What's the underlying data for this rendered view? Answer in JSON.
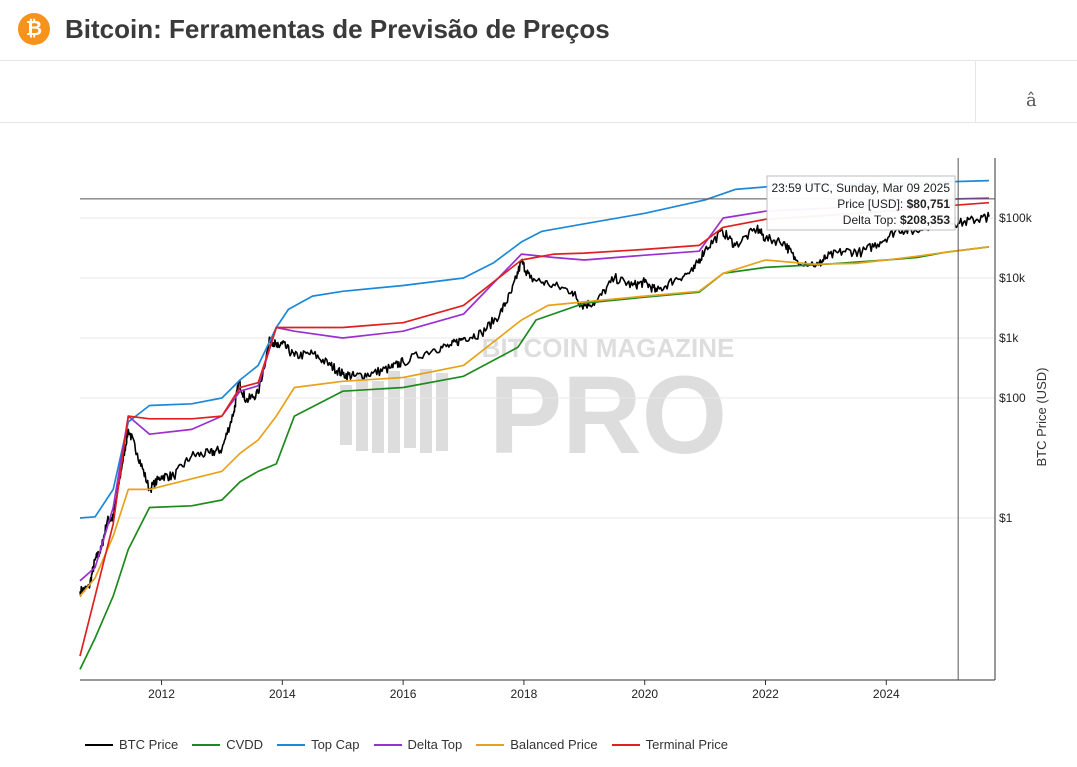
{
  "header": {
    "logo_icon": "bitcoin-logo-icon",
    "logo_glyph": "₿",
    "title": "Bitcoin: Ferramentas de Previsão de Preços"
  },
  "toolbar": {
    "glyph": "â"
  },
  "watermark": {
    "top": "BITCOIN MAGAZINE",
    "main": "PRO"
  },
  "tooltip": {
    "line1": "23:59 UTC, Sunday, Mar 09 2025",
    "price_label": "Price [USD]: ",
    "price_value": "$80,751",
    "delta_label": "Delta Top: ",
    "delta_value": "$208,353"
  },
  "chart_data": {
    "type": "line",
    "ylabel": "BTC Price (USD)",
    "y_scale": "log",
    "ylim": [
      0.002,
      1000000
    ],
    "xlim": [
      2010.65,
      2025.8
    ],
    "x_ticks": [
      2012,
      2014,
      2016,
      2018,
      2020,
      2022,
      2024
    ],
    "y_ticks": [
      {
        "value": 1,
        "label": "$1"
      },
      {
        "value": 100,
        "label": "$100"
      },
      {
        "value": 1000,
        "label": "$1k"
      },
      {
        "value": 10000,
        "label": "$10k"
      },
      {
        "value": 100000,
        "label": "$100k"
      }
    ],
    "crosshair_x": 2025.19,
    "crosshair_y": 208353,
    "legend_position": "bottom",
    "series": [
      {
        "name": "BTC Price",
        "color": "#000000",
        "x": [
          2010.65,
          2010.8,
          2010.9,
          2011.0,
          2011.1,
          2011.2,
          2011.35,
          2011.45,
          2011.6,
          2011.8,
          2012.0,
          2012.2,
          2012.5,
          2012.8,
          2013.0,
          2013.2,
          2013.28,
          2013.4,
          2013.6,
          2013.8,
          2013.92,
          2014.0,
          2014.2,
          2014.5,
          2014.8,
          2015.0,
          2015.2,
          2015.5,
          2015.8,
          2016.0,
          2016.5,
          2016.8,
          2017.0,
          2017.3,
          2017.6,
          2017.8,
          2017.96,
          2018.1,
          2018.4,
          2018.8,
          2018.96,
          2019.2,
          2019.5,
          2019.8,
          2020.0,
          2020.2,
          2020.5,
          2020.8,
          2021.0,
          2021.29,
          2021.5,
          2021.86,
          2022.0,
          2022.3,
          2022.5,
          2022.88,
          2023.0,
          2023.3,
          2023.6,
          2023.9,
          2024.2,
          2024.5,
          2024.96,
          2025.19,
          2025.5,
          2025.7
        ],
        "values": [
          0.06,
          0.07,
          0.2,
          0.3,
          0.9,
          1.0,
          8,
          30,
          12,
          3,
          5,
          5,
          11,
          12,
          14,
          60,
          190,
          90,
          120,
          1000,
          700,
          800,
          500,
          550,
          350,
          250,
          230,
          260,
          320,
          400,
          650,
          750,
          1000,
          1200,
          2500,
          6000,
          19000,
          10000,
          8000,
          6000,
          3500,
          4000,
          10000,
          7500,
          8500,
          6000,
          9500,
          13000,
          30000,
          60000,
          35000,
          67000,
          45000,
          40000,
          20000,
          16500,
          22000,
          28000,
          27000,
          40000,
          65000,
          60000,
          100000,
          80751,
          95000,
          105000
        ]
      },
      {
        "name": "CVDD",
        "color": "#1e8a1e",
        "x": [
          2010.65,
          2010.9,
          2011.2,
          2011.45,
          2011.8,
          2012.5,
          2013.0,
          2013.3,
          2013.6,
          2013.9,
          2014.2,
          2015.0,
          2016.0,
          2017.0,
          2017.9,
          2018.2,
          2019.0,
          2020.0,
          2020.9,
          2021.3,
          2022.0,
          2023.0,
          2024.0,
          2024.5,
          2025.0,
          2025.7
        ],
        "values": [
          0.003,
          0.01,
          0.05,
          0.3,
          1.5,
          1.6,
          2,
          4,
          6,
          8,
          50,
          130,
          150,
          230,
          700,
          2000,
          3800,
          4800,
          5800,
          12000,
          15000,
          17000,
          20000,
          22000,
          27000,
          33000
        ]
      },
      {
        "name": "Top Cap",
        "color": "#1e88d8",
        "x": [
          2010.65,
          2010.9,
          2011.2,
          2011.45,
          2011.8,
          2012.5,
          2013.0,
          2013.3,
          2013.6,
          2013.9,
          2014.1,
          2014.5,
          2015.0,
          2016.0,
          2017.0,
          2017.5,
          2017.96,
          2018.3,
          2019.0,
          2020.0,
          2021.0,
          2021.5,
          2022.0,
          2025.7
        ],
        "values": [
          1,
          1.05,
          3,
          40,
          75,
          80,
          100,
          200,
          350,
          1500,
          3000,
          5000,
          6000,
          7500,
          10000,
          18000,
          40000,
          60000,
          80000,
          120000,
          200000,
          300000,
          330000,
          420000
        ]
      },
      {
        "name": "Delta Top",
        "color": "#9b30d0",
        "x": [
          2010.65,
          2010.9,
          2011.2,
          2011.45,
          2011.8,
          2012.5,
          2013.0,
          2013.3,
          2013.6,
          2013.9,
          2014.2,
          2015.0,
          2016.0,
          2017.0,
          2017.96,
          2018.5,
          2019.0,
          2020.0,
          2020.9,
          2021.3,
          2022.0,
          2023.0,
          2025.19,
          2025.7
        ],
        "values": [
          0.09,
          0.15,
          1.5,
          50,
          25,
          30,
          50,
          130,
          160,
          1500,
          1300,
          1000,
          1300,
          2500,
          25000,
          22000,
          20000,
          24000,
          28000,
          100000,
          130000,
          145000,
          208353,
          215000
        ]
      },
      {
        "name": "Balanced Price",
        "color": "#e8a21a",
        "x": [
          2010.65,
          2010.9,
          2011.2,
          2011.45,
          2011.8,
          2012.5,
          2013.0,
          2013.3,
          2013.6,
          2013.9,
          2014.2,
          2015.0,
          2016.0,
          2017.0,
          2017.96,
          2018.4,
          2019.0,
          2020.0,
          2020.9,
          2021.3,
          2022.0,
          2022.8,
          2023.5,
          2024.0,
          2024.5,
          2025.0,
          2025.7
        ],
        "values": [
          0.05,
          0.1,
          0.5,
          3,
          3,
          4.5,
          6,
          12,
          20,
          50,
          150,
          190,
          220,
          350,
          2000,
          3500,
          4000,
          5000,
          6000,
          12000,
          20000,
          17000,
          17500,
          20000,
          23000,
          27000,
          33000
        ]
      },
      {
        "name": "Terminal Price",
        "color": "#e02020",
        "x": [
          2010.65,
          2010.9,
          2011.2,
          2011.45,
          2011.8,
          2012.5,
          2013.0,
          2013.3,
          2013.6,
          2013.9,
          2014.2,
          2015.0,
          2016.0,
          2017.0,
          2017.96,
          2018.5,
          2019.0,
          2020.0,
          2020.9,
          2021.3,
          2022.0,
          2023.0,
          2024.0,
          2025.0,
          2025.7
        ],
        "values": [
          0.005,
          0.05,
          0.8,
          50,
          45,
          45,
          50,
          150,
          180,
          1500,
          1500,
          1500,
          1800,
          3500,
          20000,
          25000,
          26000,
          30000,
          35000,
          70000,
          95000,
          110000,
          130000,
          160000,
          180000
        ]
      }
    ]
  }
}
